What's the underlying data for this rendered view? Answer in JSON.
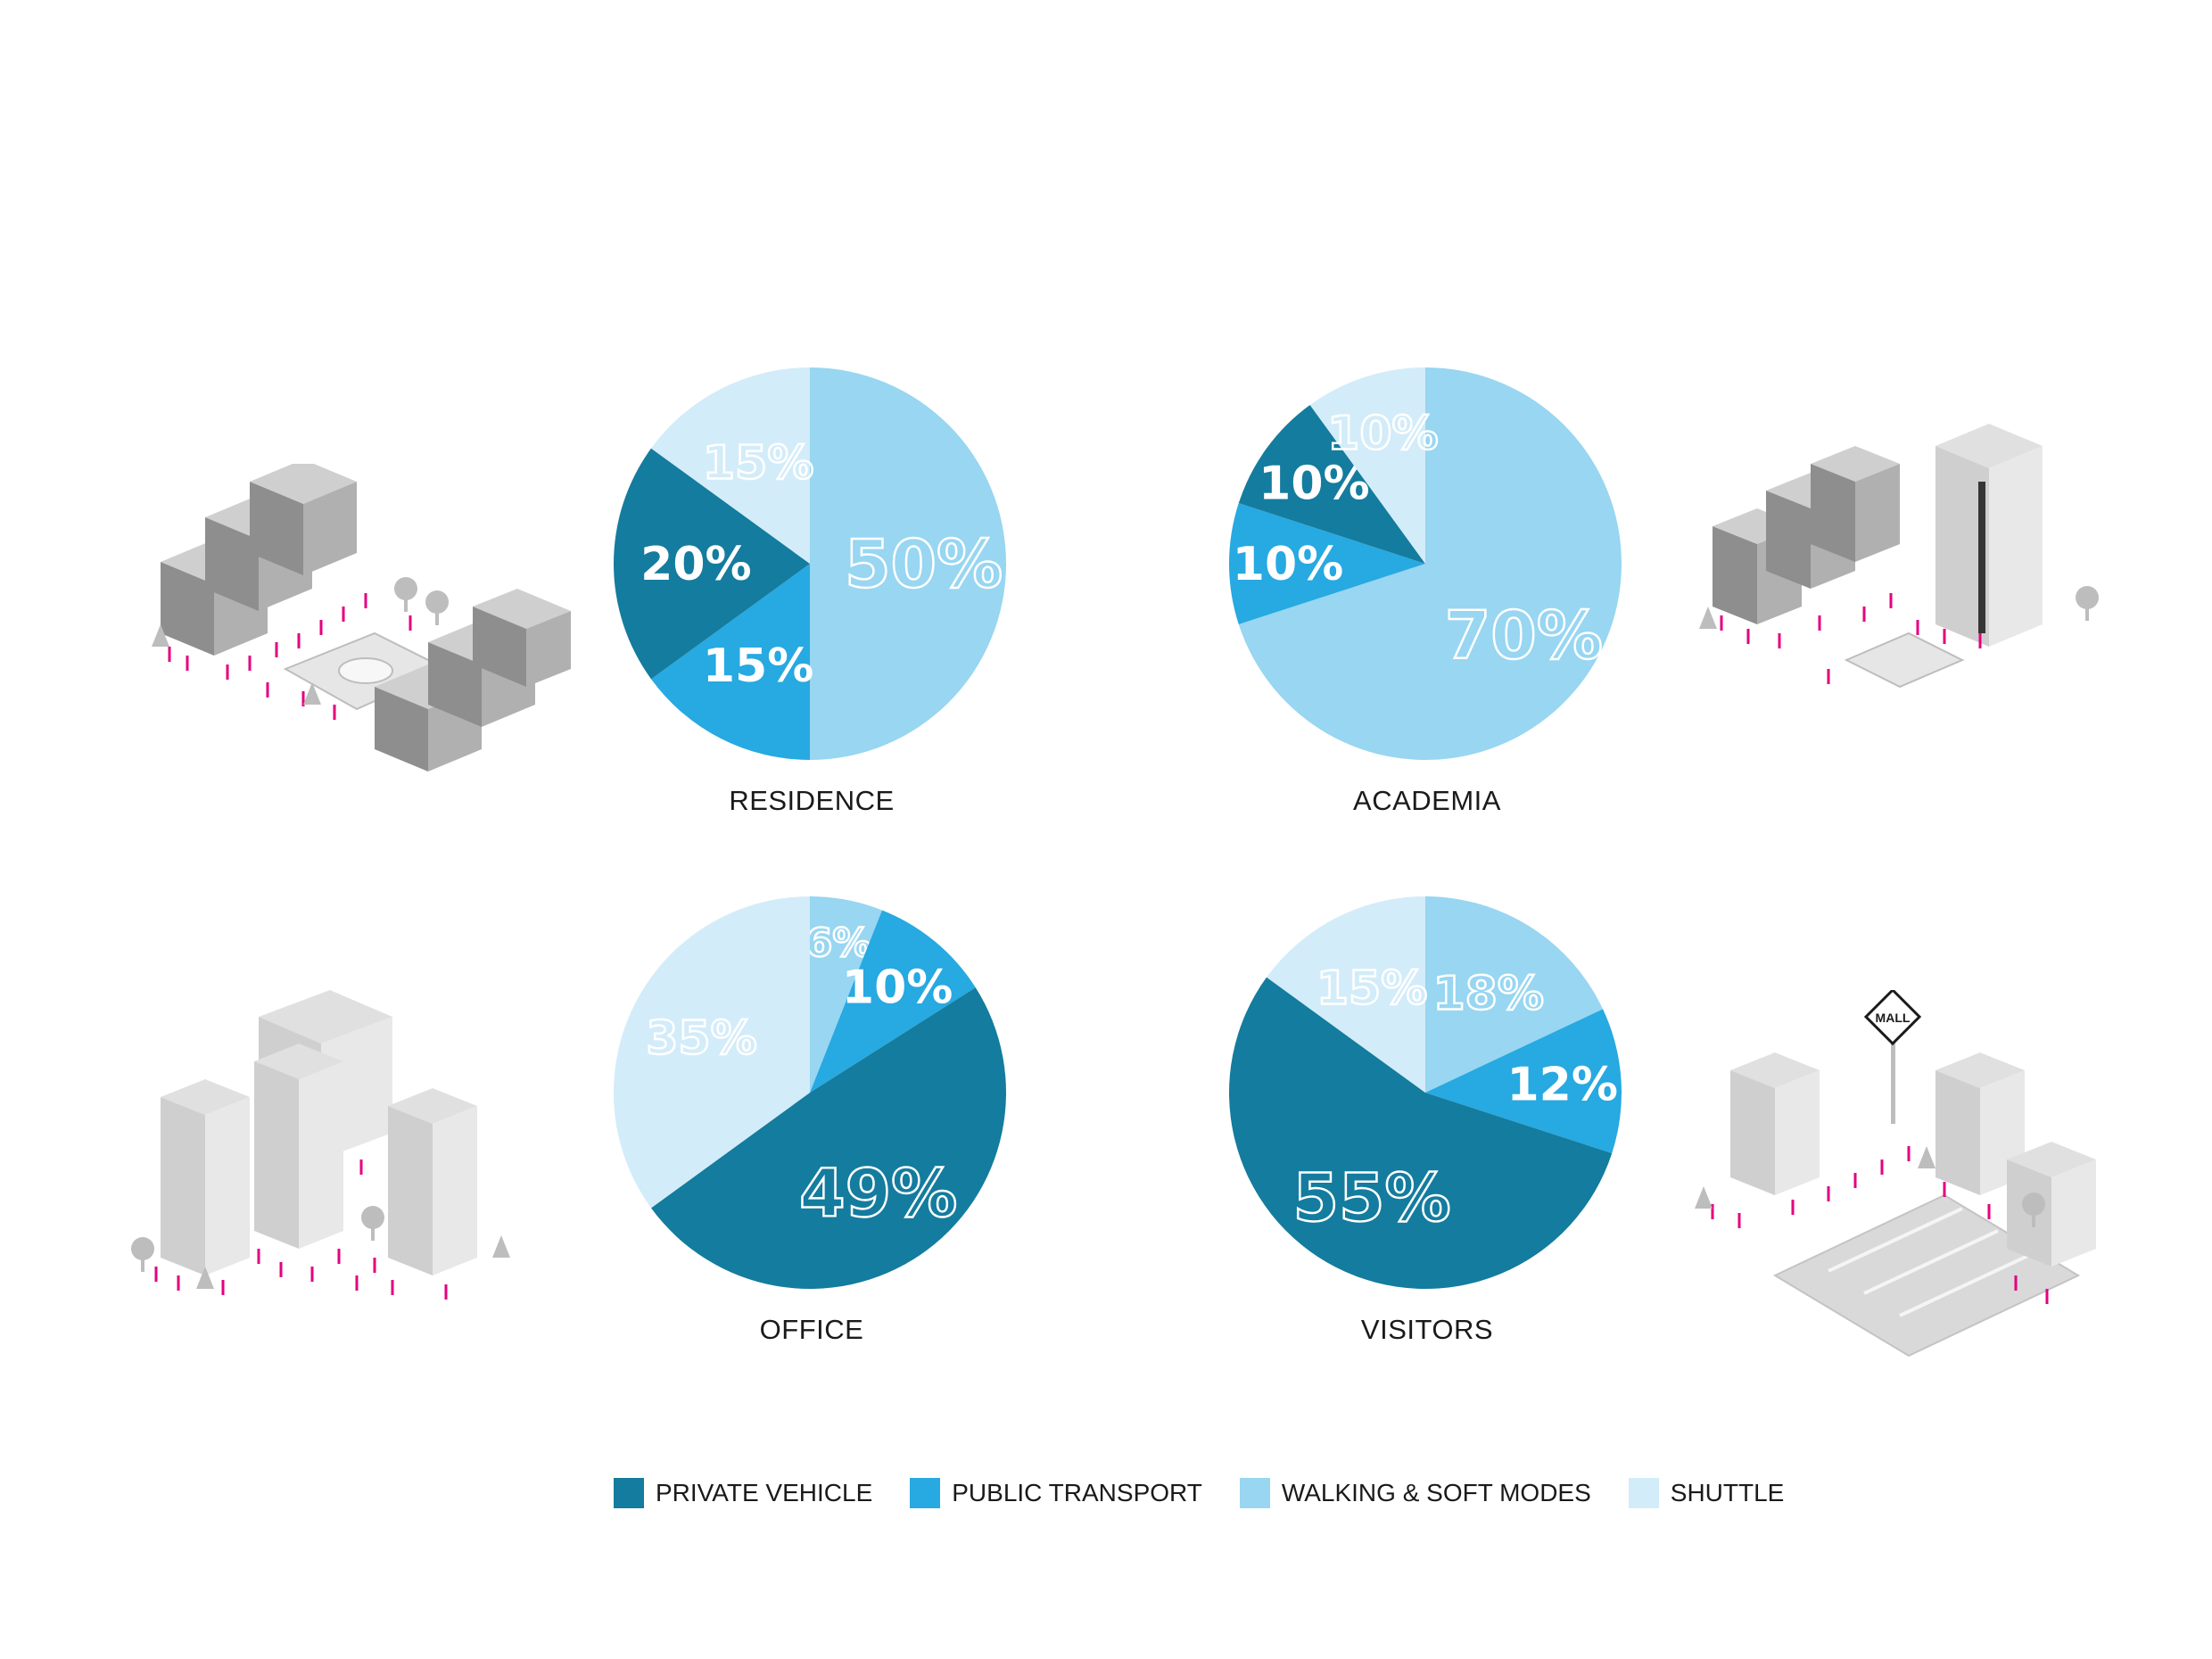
{
  "colors": {
    "private_vehicle": "#147c9e",
    "public_transport": "#27a9e1",
    "walking_soft": "#98d6f1",
    "shuttle": "#d3ecf9",
    "people": "#e5007e"
  },
  "legend": [
    {
      "name": "PRIVATE VEHICLE",
      "color": "#147c9e"
    },
    {
      "name": "PUBLIC TRANSPORT",
      "color": "#27a9e1"
    },
    {
      "name": "WALKING & SOFT MODES",
      "color": "#98d6f1"
    },
    {
      "name": "SHUTTLE",
      "color": "#d3ecf9"
    }
  ],
  "chart_data": [
    {
      "type": "pie",
      "title": "RESIDENCE",
      "slices": [
        {
          "label": "WALKING & SOFT MODES",
          "value": 50,
          "display": "50%"
        },
        {
          "label": "PUBLIC TRANSPORT",
          "value": 15,
          "display": "15%"
        },
        {
          "label": "PRIVATE VEHICLE",
          "value": 20,
          "display": "20%"
        },
        {
          "label": "SHUTTLE",
          "value": 15,
          "display": "15%"
        }
      ]
    },
    {
      "type": "pie",
      "title": "ACADEMIA",
      "slices": [
        {
          "label": "WALKING & SOFT MODES",
          "value": 70,
          "display": "70%"
        },
        {
          "label": "PUBLIC TRANSPORT",
          "value": 10,
          "display": "10%"
        },
        {
          "label": "PRIVATE VEHICLE",
          "value": 10,
          "display": "10%"
        },
        {
          "label": "SHUTTLE",
          "value": 10,
          "display": "10%"
        }
      ]
    },
    {
      "type": "pie",
      "title": "OFFICE",
      "slices": [
        {
          "label": "WALKING & SOFT MODES",
          "value": 6,
          "display": "6%"
        },
        {
          "label": "PUBLIC TRANSPORT",
          "value": 10,
          "display": "10%"
        },
        {
          "label": "PRIVATE VEHICLE",
          "value": 49,
          "display": "49%"
        },
        {
          "label": "SHUTTLE",
          "value": 35,
          "display": "35%"
        }
      ]
    },
    {
      "type": "pie",
      "title": "VISITORS",
      "slices": [
        {
          "label": "WALKING & SOFT MODES",
          "value": 18,
          "display": "18%"
        },
        {
          "label": "PUBLIC TRANSPORT",
          "value": 12,
          "display": "12%"
        },
        {
          "label": "PRIVATE VEHICLE",
          "value": 55,
          "display": "55%"
        },
        {
          "label": "SHUTTLE",
          "value": 15,
          "display": "15%"
        }
      ]
    }
  ],
  "illustrations": [
    {
      "icon": "residential-blocks-illustration"
    },
    {
      "icon": "campus-buildings-illustration"
    },
    {
      "icon": "office-towers-illustration"
    },
    {
      "icon": "mall-parking-illustration",
      "sign": "MALL"
    }
  ]
}
